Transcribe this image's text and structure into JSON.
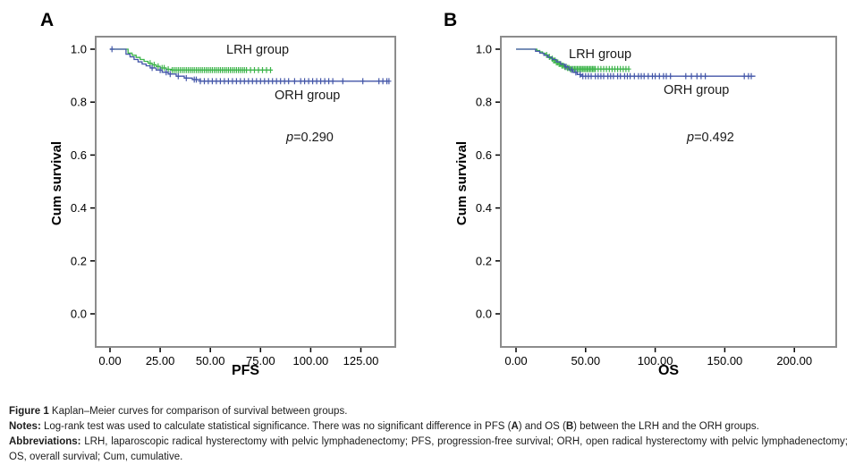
{
  "chart_data": [
    {
      "id": "panel-A",
      "type": "line",
      "subtype": "kaplan-meier-step",
      "panel_label": "A",
      "xlabel": "PFS",
      "ylabel": "Cum survival",
      "xlim": [
        0,
        140
      ],
      "ylim": [
        0.0,
        1.0
      ],
      "grid": false,
      "legend_position": "inline-annotations",
      "frame_color": "#8c8c8c",
      "x_ticks": [
        {
          "v": 0,
          "label": "0.00"
        },
        {
          "v": 25,
          "label": "25.00"
        },
        {
          "v": 50,
          "label": "50.00"
        },
        {
          "v": 75,
          "label": "75.00"
        },
        {
          "v": 100,
          "label": "100.00"
        },
        {
          "v": 125,
          "label": "125.00"
        }
      ],
      "y_ticks": [
        {
          "v": 1.0,
          "label": "1.0"
        },
        {
          "v": 0.8,
          "label": "0.8"
        },
        {
          "v": 0.6,
          "label": "0.6"
        },
        {
          "v": 0.4,
          "label": "0.4"
        },
        {
          "v": 0.2,
          "label": "0.2"
        },
        {
          "v": 0.0,
          "label": "0.0"
        }
      ],
      "annotations": {
        "p_symbol": "p",
        "p_text": "=0.290"
      },
      "series": [
        {
          "name": "LRH group",
          "color": "#3cb44a",
          "start": [
            0,
            1.0
          ],
          "steps": [
            [
              9,
              0.985
            ],
            [
              11,
              0.977
            ],
            [
              13,
              0.969
            ],
            [
              15,
              0.961
            ],
            [
              17,
              0.954
            ],
            [
              19,
              0.947
            ],
            [
              21,
              0.941
            ],
            [
              23,
              0.935
            ],
            [
              25,
              0.929
            ],
            [
              28,
              0.924
            ],
            [
              31,
              0.921
            ]
          ],
          "end": 80,
          "censors": [
            20,
            22,
            24,
            26,
            27,
            29,
            31,
            32,
            33,
            34,
            35,
            36,
            37,
            38,
            39,
            40,
            41,
            42,
            43,
            44,
            45,
            46,
            47,
            48,
            49,
            50,
            51,
            52,
            53,
            54,
            55,
            56,
            57,
            58,
            59,
            60,
            61,
            62,
            63,
            64,
            65,
            66,
            67,
            68,
            70,
            72,
            74,
            76,
            78,
            80
          ]
        },
        {
          "name": "ORH group",
          "color": "#4356a8",
          "start": [
            0,
            1.0
          ],
          "steps": [
            [
              8,
              0.981
            ],
            [
              10,
              0.971
            ],
            [
              12,
              0.961
            ],
            [
              14,
              0.952
            ],
            [
              16,
              0.944
            ],
            [
              18,
              0.937
            ],
            [
              20,
              0.929
            ],
            [
              23,
              0.921
            ],
            [
              26,
              0.913
            ],
            [
              29,
              0.906
            ],
            [
              33,
              0.898
            ],
            [
              37,
              0.891
            ],
            [
              41,
              0.885
            ],
            [
              45,
              0.879
            ]
          ],
          "end": 139,
          "censors": [
            1,
            21,
            25,
            28,
            30,
            34,
            38,
            42,
            43,
            45,
            47,
            49,
            51,
            53,
            55,
            57,
            59,
            61,
            63,
            65,
            67,
            69,
            71,
            73,
            75,
            77,
            79,
            81,
            83,
            85,
            87,
            89,
            92,
            95,
            97,
            99,
            101,
            103,
            105,
            107,
            109,
            111,
            116,
            126,
            134,
            136,
            138,
            139
          ]
        }
      ]
    },
    {
      "id": "panel-B",
      "type": "line",
      "subtype": "kaplan-meier-step",
      "panel_label": "B",
      "xlabel": "OS",
      "ylabel": "Cum survival",
      "xlim": [
        0,
        230
      ],
      "ylim": [
        0.0,
        1.0
      ],
      "grid": false,
      "legend_position": "inline-annotations",
      "frame_color": "#8c8c8c",
      "x_ticks": [
        {
          "v": 0,
          "label": "0.00"
        },
        {
          "v": 50,
          "label": "50.00"
        },
        {
          "v": 100,
          "label": "100.00"
        },
        {
          "v": 150,
          "label": "150.00"
        },
        {
          "v": 200,
          "label": "200.00"
        }
      ],
      "y_ticks": [
        {
          "v": 1.0,
          "label": "1.0"
        },
        {
          "v": 0.8,
          "label": "0.8"
        },
        {
          "v": 0.6,
          "label": "0.6"
        },
        {
          "v": 0.4,
          "label": "0.4"
        },
        {
          "v": 0.2,
          "label": "0.2"
        },
        {
          "v": 0.0,
          "label": "0.0"
        }
      ],
      "annotations": {
        "p_symbol": "p",
        "p_text": "=0.492"
      },
      "series": [
        {
          "name": "LRH group",
          "color": "#3cb44a",
          "start": [
            0,
            1.0
          ],
          "steps": [
            [
              15,
              0.995
            ],
            [
              17,
              0.99
            ],
            [
              19,
              0.984
            ],
            [
              21,
              0.978
            ],
            [
              23,
              0.971
            ],
            [
              25,
              0.964
            ],
            [
              27,
              0.957
            ],
            [
              29,
              0.95
            ],
            [
              31,
              0.944
            ],
            [
              33,
              0.938
            ],
            [
              35,
              0.933
            ],
            [
              37,
              0.929
            ],
            [
              39,
              0.925
            ]
          ],
          "end": 81,
          "censors": [
            22,
            24,
            26,
            27,
            28,
            29,
            30,
            31,
            32,
            33,
            34,
            35,
            36,
            37,
            38,
            39,
            40,
            41,
            42,
            43,
            44,
            45,
            46,
            47,
            48,
            49,
            50,
            51,
            52,
            53,
            54,
            55,
            56,
            57,
            59,
            61,
            63,
            65,
            67,
            69,
            71,
            73,
            75,
            77,
            79,
            81
          ]
        },
        {
          "name": "ORH group",
          "color": "#4356a8",
          "start": [
            0,
            1.0
          ],
          "steps": [
            [
              14,
              0.992
            ],
            [
              17,
              0.985
            ],
            [
              20,
              0.977
            ],
            [
              23,
              0.969
            ],
            [
              26,
              0.961
            ],
            [
              29,
              0.952
            ],
            [
              32,
              0.943
            ],
            [
              35,
              0.933
            ],
            [
              38,
              0.922
            ],
            [
              41,
              0.912
            ],
            [
              44,
              0.904
            ],
            [
              47,
              0.898
            ]
          ],
          "end": 172,
          "censors": [
            36,
            40,
            43,
            46,
            48,
            50,
            52,
            54,
            57,
            59,
            61,
            63,
            66,
            68,
            70,
            73,
            75,
            78,
            80,
            82,
            85,
            88,
            90,
            92,
            95,
            98,
            100,
            103,
            106,
            108,
            111,
            122,
            126,
            130,
            133,
            136,
            164,
            167,
            169
          ]
        }
      ]
    }
  ],
  "caption": {
    "figure_label": "Figure 1",
    "figure_text": " Kaplan–Meier curves for comparison of survival between groups.",
    "notes_label": "Notes:",
    "notes_seg1": " Log-rank test was used to calculate statistical significance. There was no significant difference in PFS (",
    "notes_bold_a": "A",
    "notes_seg2": ") and OS (",
    "notes_bold_b": "B",
    "notes_seg3": ") between the LRH and the ORH groups.",
    "abbr_label": "Abbreviations:",
    "abbr_text": " LRH, laparoscopic radical hysterectomy with pelvic lymphadenectomy; PFS, progression-free survival; ORH, open radical hysterectomy with pelvic lymphadenectomy; OS, overall survival; Cum, cumulative."
  }
}
